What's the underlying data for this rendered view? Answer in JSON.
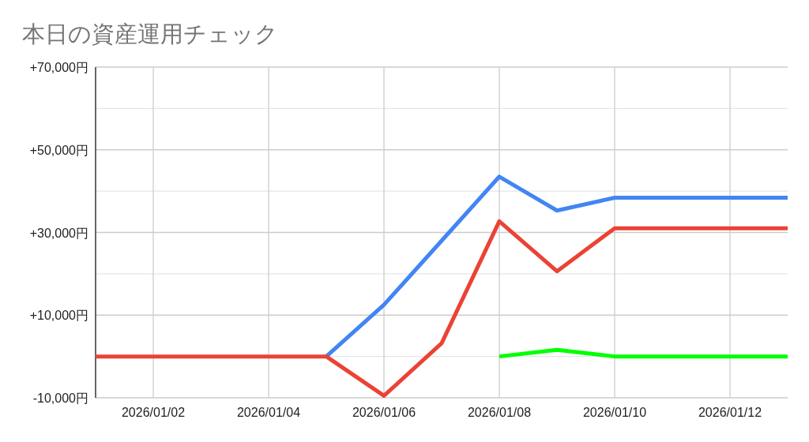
{
  "chart_data": {
    "type": "line",
    "title": "本日の資産運用チェック",
    "xlim": [
      "2026-01-01",
      "2026-01-13"
    ],
    "xticks": [
      {
        "value": "2026-01-02",
        "label": "2026/01/02"
      },
      {
        "value": "2026-01-04",
        "label": "2026/01/04"
      },
      {
        "value": "2026-01-06",
        "label": "2026/01/06"
      },
      {
        "value": "2026-01-08",
        "label": "2026/01/08"
      },
      {
        "value": "2026-01-10",
        "label": "2026/01/10"
      },
      {
        "value": "2026-01-12",
        "label": "2026/01/12"
      }
    ],
    "ylim": [
      -10000,
      70000
    ],
    "yticks": [
      {
        "value": -10000,
        "label": "-10,000円"
      },
      {
        "value": 0,
        "label": null
      },
      {
        "value": 10000,
        "label": "+10,000円"
      },
      {
        "value": 20000,
        "label": null
      },
      {
        "value": 30000,
        "label": "+30,000円"
      },
      {
        "value": 40000,
        "label": null
      },
      {
        "value": 50000,
        "label": "+50,000円"
      },
      {
        "value": 60000,
        "label": null
      },
      {
        "value": 70000,
        "label": "+70,000円"
      }
    ],
    "grid": true,
    "line_style": "solid",
    "series": [
      {
        "color": "#4285f4",
        "x": [
          "2026-01-05",
          "2026-01-06",
          "2026-01-07",
          "2026-01-08",
          "2026-01-09",
          "2026-01-10",
          "2026-01-11",
          "2026-01-12",
          "2026-01-13"
        ],
        "values": [
          0,
          12500,
          28000,
          43500,
          35300,
          38400,
          38400,
          38400,
          38400
        ]
      },
      {
        "color": "#ea4335",
        "x": [
          "2026-01-01",
          "2026-01-02",
          "2026-01-03",
          "2026-01-04",
          "2026-01-05",
          "2026-01-06",
          "2026-01-07",
          "2026-01-08",
          "2026-01-09",
          "2026-01-10",
          "2026-01-11",
          "2026-01-12",
          "2026-01-13"
        ],
        "values": [
          0,
          0,
          0,
          0,
          0,
          -9500,
          3200,
          32700,
          20600,
          31000,
          31000,
          31000,
          31000
        ]
      },
      {
        "color": "#00ff00",
        "x": [
          "2026-01-08",
          "2026-01-09",
          "2026-01-10",
          "2026-01-11",
          "2026-01-12",
          "2026-01-13"
        ],
        "values": [
          0,
          1600,
          0,
          0,
          0,
          0
        ]
      }
    ]
  }
}
